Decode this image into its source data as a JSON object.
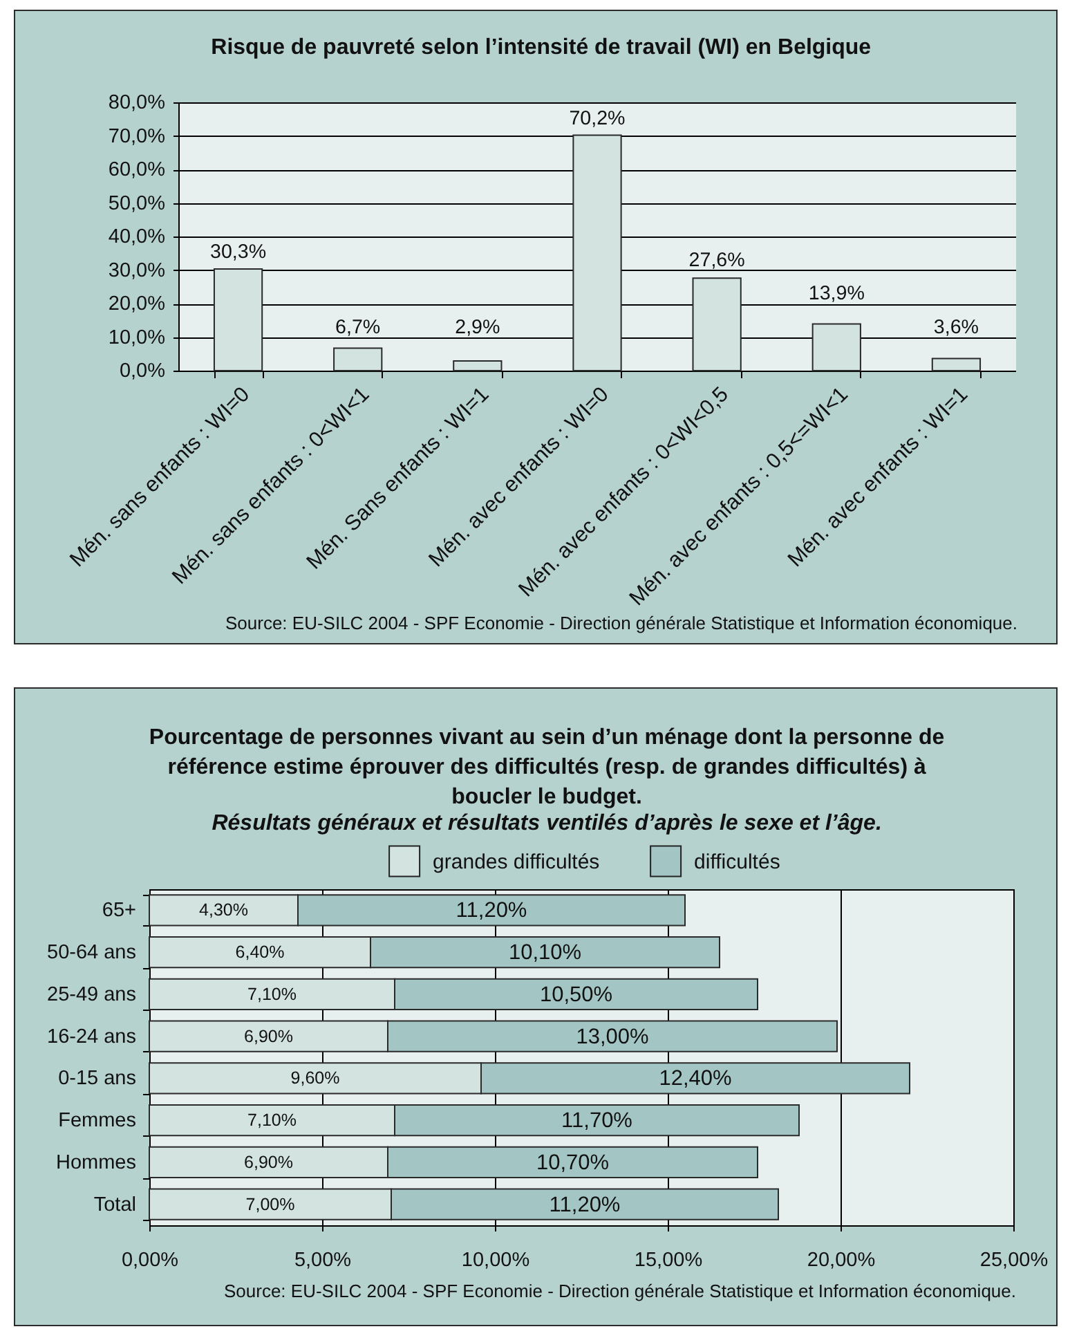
{
  "chart_data": [
    {
      "type": "bar",
      "title": "Risque de pauvreté selon l’intensité de travail (WI) en Belgique",
      "categories": [
        "Mén. sans enfants : WI=0",
        "Mén. sans enfants : 0<WI<1",
        "Mén. Sans enfants : WI=1",
        "Mén. avec enfants : WI=0",
        "Mén. avec enfants : 0<WI<0,5",
        "Mén. avec enfants : 0,5<=WI<1",
        "Mén. avec enfants : WI=1"
      ],
      "values": [
        30.3,
        6.7,
        2.9,
        70.2,
        27.6,
        13.9,
        3.6
      ],
      "value_labels": [
        "30,3%",
        "6,7%",
        "2,9%",
        "70,2%",
        "27,6%",
        "13,9%",
        "3,6%"
      ],
      "color": "#d2e3e0",
      "ylim": [
        0,
        80
      ],
      "yticks": [
        {
          "value": 0,
          "label": "0,0%"
        },
        {
          "value": 10,
          "label": "10,0%"
        },
        {
          "value": 20,
          "label": "20,0%"
        },
        {
          "value": 30,
          "label": "30,0%"
        },
        {
          "value": 40,
          "label": "40,0%"
        },
        {
          "value": 50,
          "label": "50,0%"
        },
        {
          "value": 60,
          "label": "60,0%"
        },
        {
          "value": 70,
          "label": "70,0%"
        },
        {
          "value": 80,
          "label": "80,0%"
        }
      ],
      "grid": "y",
      "annotations": [
        "Source: EU-SILC 2004 - SPF Economie - Direction générale Statistique et Information économique."
      ]
    },
    {
      "type": "bar",
      "orientation": "horizontal",
      "stacked": true,
      "title": "Pourcentage de personnes vivant au sein d’un ménage dont la personne de référence estime éprouver des difficultés (resp. de grandes difficultés) à boucler le budget.",
      "subtitle": "Résultats généraux et résultats ventilés d’après le sexe et l’âge.",
      "categories": [
        "65+",
        "50-64 ans",
        "25-49 ans",
        "16-24 ans",
        "0-15 ans",
        "Femmes",
        "Hommes",
        "Total"
      ],
      "series": [
        {
          "name": "grandes difficultés",
          "color": "#d2e3e0",
          "values": [
            4.3,
            6.4,
            7.1,
            6.9,
            9.6,
            7.1,
            6.9,
            7.0
          ],
          "value_labels": [
            "4,30%",
            "6,40%",
            "7,10%",
            "6,90%",
            "9,60%",
            "7,10%",
            "6,90%",
            "7,00%"
          ]
        },
        {
          "name": "difficultés",
          "color": "#a3c6c4",
          "values": [
            11.2,
            10.1,
            10.5,
            13.0,
            12.4,
            11.7,
            10.7,
            11.2
          ],
          "value_labels": [
            "11,20%",
            "10,10%",
            "10,50%",
            "13,00%",
            "12,40%",
            "11,70%",
            "10,70%",
            "11,20%"
          ]
        }
      ],
      "xlim": [
        0,
        25
      ],
      "xticks": [
        {
          "value": 0,
          "label": "0,00%"
        },
        {
          "value": 5,
          "label": "5,00%"
        },
        {
          "value": 10,
          "label": "10,00%"
        },
        {
          "value": 15,
          "label": "15,00%"
        },
        {
          "value": 20,
          "label": "20,00%"
        },
        {
          "value": 25,
          "label": "25,00%"
        }
      ],
      "grid": "x",
      "legend": "top",
      "annotations": [
        "Source: EU-SILC 2004 - SPF Economie - Direction générale Statistique et Information économique."
      ]
    }
  ]
}
